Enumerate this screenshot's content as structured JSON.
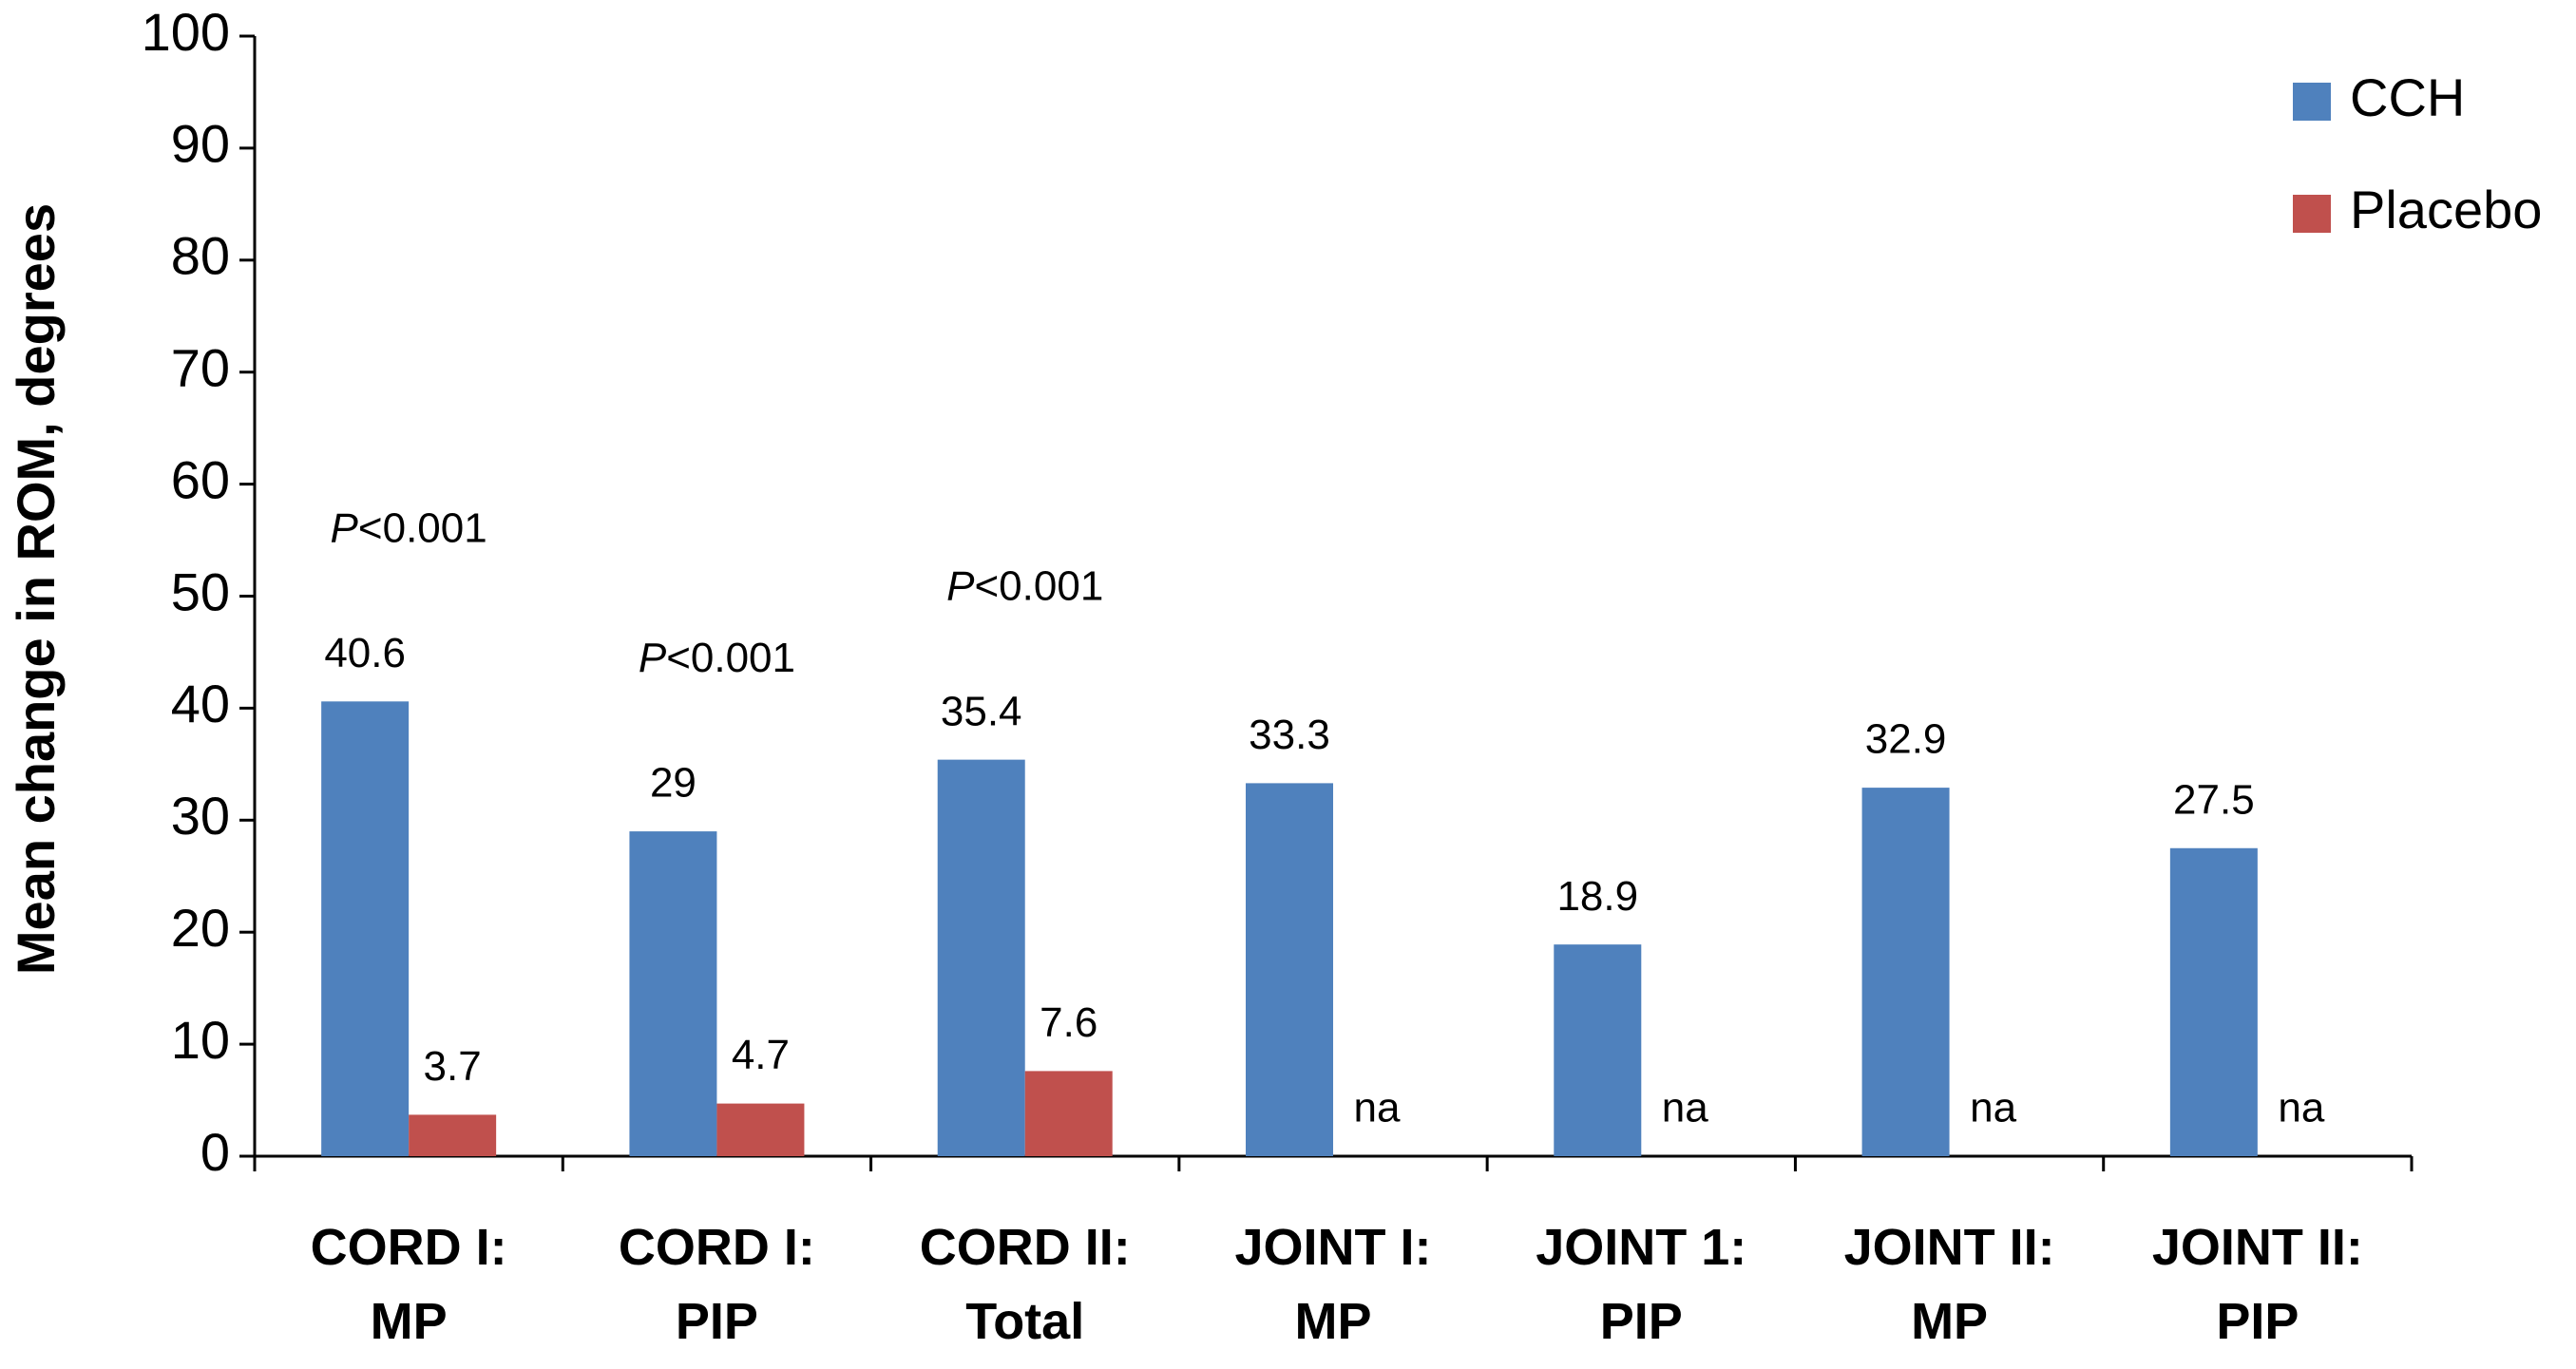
{
  "chart_data": {
    "type": "bar",
    "y_label": "Mean change in ROM, degrees",
    "categories": [
      "CORD I:\nMP",
      "CORD I:\nPIP",
      "CORD II:\nTotal",
      "JOINT I:\nMP",
      "JOINT 1:\nPIP",
      "JOINT II:\nMP",
      "JOINT II:\nPIP"
    ],
    "series": [
      {
        "name": "CCH",
        "color": "#4f81bd",
        "values": [
          40.6,
          29,
          35.4,
          33.3,
          18.9,
          32.9,
          27.5
        ]
      },
      {
        "name": "Placebo",
        "color": "#c0504d",
        "values": [
          3.7,
          4.7,
          7.6,
          null,
          null,
          null,
          null
        ],
        "value_labels": [
          "3.7",
          "4.7",
          "7.6",
          "na",
          "na",
          "na",
          "na"
        ]
      }
    ],
    "p_values": [
      "P<0.001",
      "P<0.001",
      "P<0.001",
      null,
      null,
      null,
      null
    ],
    "ylim": [
      0,
      100
    ],
    "yticks": [
      0,
      10,
      20,
      30,
      40,
      50,
      60,
      70,
      80,
      90,
      100
    ],
    "legend": "top-right"
  }
}
